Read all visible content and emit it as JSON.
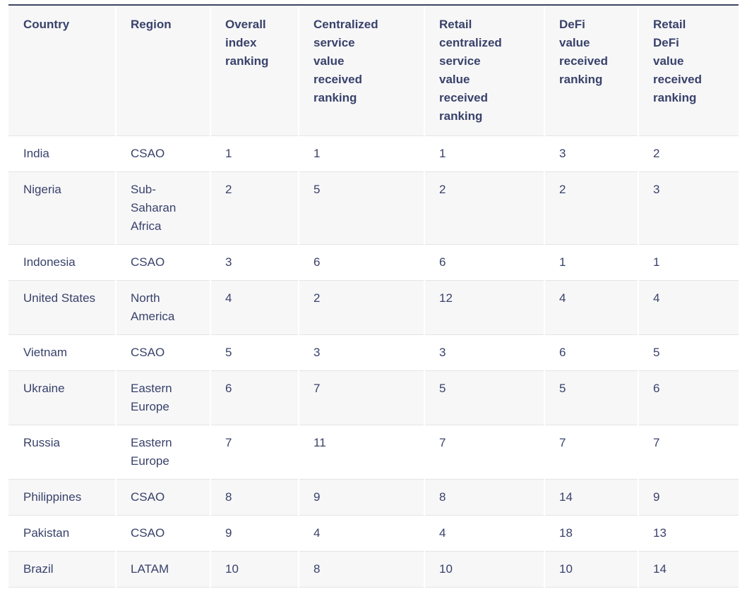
{
  "chart_data": {
    "type": "table",
    "columns": [
      "Country",
      "Region",
      "Overall\nindex\nranking",
      "Centralized\nservice\nvalue\nreceived\nranking",
      "Retail\ncentralized\nservice\nvalue\nreceived\nranking",
      "DeFi\nvalue\nreceived\nranking",
      "Retail\nDeFi\nvalue\nreceived\nranking"
    ],
    "rows": [
      [
        "India",
        "CSAO",
        "1",
        "1",
        "1",
        "3",
        "2"
      ],
      [
        "Nigeria",
        "Sub-Saharan Africa",
        "2",
        "5",
        "2",
        "2",
        "3"
      ],
      [
        "Indonesia",
        "CSAO",
        "3",
        "6",
        "6",
        "1",
        "1"
      ],
      [
        "United States",
        "North America",
        "4",
        "2",
        "12",
        "4",
        "4"
      ],
      [
        "Vietnam",
        "CSAO",
        "5",
        "3",
        "3",
        "6",
        "5"
      ],
      [
        "Ukraine",
        "Eastern Europe",
        "6",
        "7",
        "5",
        "5",
        "6"
      ],
      [
        "Russia",
        "Eastern Europe",
        "7",
        "11",
        "7",
        "7",
        "7"
      ],
      [
        "Philippines",
        "CSAO",
        "8",
        "9",
        "8",
        "14",
        "9"
      ],
      [
        "Pakistan",
        "CSAO",
        "9",
        "4",
        "4",
        "18",
        "13"
      ],
      [
        "Brazil",
        "LATAM",
        "10",
        "8",
        "10",
        "10",
        "14"
      ]
    ],
    "layout": {
      "header_rows": 1,
      "zebra_striping": true,
      "grid": "horizontal-rules"
    }
  },
  "colors": {
    "text": "#39426a",
    "header_bg": "#f7f7f8",
    "row_alt_bg": "#f7f7f8",
    "row_bg": "#ffffff",
    "top_border": "#3d4560",
    "row_border": "#e4e4e6",
    "col_separator": "#ffffff"
  }
}
